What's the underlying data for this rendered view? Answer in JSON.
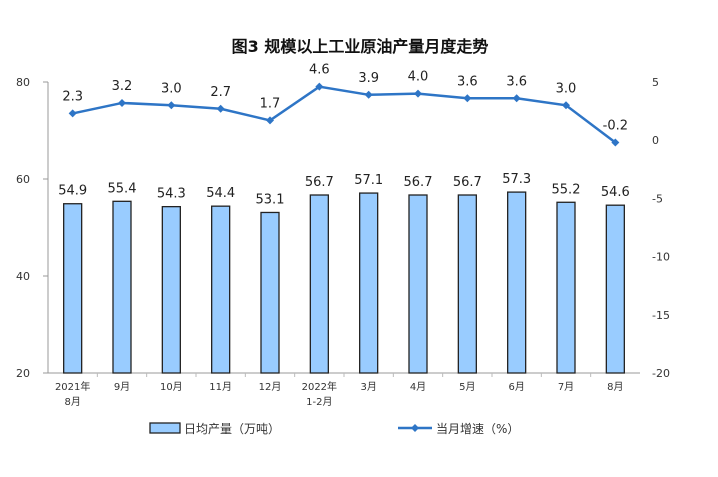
{
  "chart_data": {
    "type": "bar+line",
    "title": "图3  规模以上工业原油产量月度走势",
    "categories": [
      "2021年\n8月",
      "9月",
      "10月",
      "11月",
      "12月",
      "2022年\n1-2月",
      "3月",
      "4月",
      "5月",
      "6月",
      "7月",
      "8月"
    ],
    "series": [
      {
        "name": "日均产量（万吨）",
        "type": "bar",
        "axis": "left",
        "color": "#99ccff",
        "values": [
          54.9,
          55.4,
          54.3,
          54.4,
          53.1,
          56.7,
          57.1,
          56.7,
          56.7,
          57.3,
          55.2,
          54.6
        ]
      },
      {
        "name": "当月增速（%）",
        "type": "line",
        "axis": "right",
        "color": "#2e75c6",
        "values": [
          2.3,
          3.2,
          3.0,
          2.7,
          1.7,
          4.6,
          3.9,
          4.0,
          3.6,
          3.6,
          3.0,
          -0.2
        ]
      }
    ],
    "left_axis": {
      "ylim": [
        20,
        80
      ],
      "ticks": [
        20,
        40,
        60,
        80
      ]
    },
    "right_axis": {
      "ylim": [
        -20,
        5
      ],
      "ticks": [
        5,
        0,
        -5,
        -10,
        -15,
        -20
      ]
    },
    "grid": false,
    "legend": "bottom"
  }
}
